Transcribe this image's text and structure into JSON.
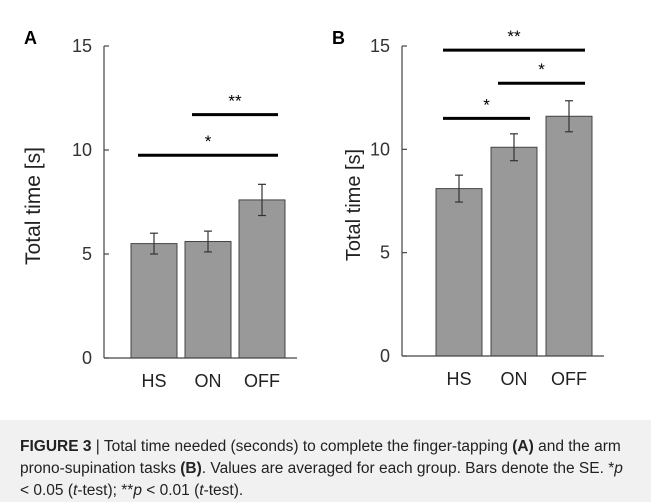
{
  "colors": {
    "bar": "#999999",
    "bar_edge": "#444444",
    "axis": "#444444",
    "line": "#000000"
  },
  "chart_data": [
    {
      "type": "bar",
      "panel_label": "A",
      "categories": [
        "HS",
        "ON",
        "OFF"
      ],
      "values": [
        5.5,
        5.6,
        7.6
      ],
      "errors": [
        0.5,
        0.5,
        0.75
      ],
      "ylabel": "Total time [s]",
      "ylim": [
        0,
        15
      ],
      "yticks": [
        0,
        5,
        10,
        15
      ],
      "significance": [
        {
          "from": 0,
          "to": 2,
          "label": "*",
          "y": 9.75
        },
        {
          "from": 1,
          "to": 2,
          "label": "**",
          "y": 11.7
        }
      ]
    },
    {
      "type": "bar",
      "panel_label": "B",
      "categories": [
        "HS",
        "ON",
        "OFF"
      ],
      "values": [
        8.1,
        10.1,
        11.6
      ],
      "errors": [
        0.65,
        0.65,
        0.75
      ],
      "ylabel": "Total time [s]",
      "ylim": [
        0,
        15
      ],
      "yticks": [
        0,
        5,
        10,
        15
      ],
      "significance": [
        {
          "from": 0,
          "to": 1,
          "label": "*",
          "y": 11.5
        },
        {
          "from": 1,
          "to": 2,
          "label": "*",
          "y": 13.2
        },
        {
          "from": 0,
          "to": 2,
          "label": "**",
          "y": 14.8
        }
      ]
    }
  ],
  "caption": {
    "figure_label": "FIGURE 3",
    "separator": " | ",
    "text1": "Total time needed (seconds) to complete the finger-tapping ",
    "ref_a": "(A)",
    "text2": " and the arm prono-supination tasks ",
    "ref_b": "(B)",
    "text3": ". Values are averaged for each group. Bars denote the SE. ",
    "sig1_star": "*",
    "p1": "p",
    "sig1_cond": " < 0.05 (",
    "t1": "t",
    "sig1_end": "-test); ",
    "sig2_star": "**",
    "p2": "p",
    "sig2_cond": " < 0.01 (",
    "t2": "t",
    "sig2_end": "-test)."
  }
}
